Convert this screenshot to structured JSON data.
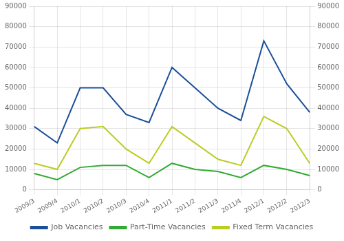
{
  "chart_data": {
    "type": "line",
    "categories": [
      "2009/3",
      "2009/4",
      "2010/1",
      "2010/2",
      "2010/3",
      "2010/4",
      "2011/1",
      "2011/2",
      "2011/3",
      "2011/4",
      "2012/1",
      "2012/2",
      "2012/3"
    ],
    "series": [
      {
        "name": "Job Vacancies",
        "color": "#1b4f9a",
        "values": [
          31000,
          23000,
          50000,
          50000,
          37000,
          33000,
          60000,
          50000,
          40000,
          34000,
          73000,
          52000,
          38000
        ]
      },
      {
        "name": "Part-Time Vacancies",
        "color": "#33aa33",
        "values": [
          8000,
          5000,
          11000,
          12000,
          12000,
          6000,
          13000,
          10000,
          9000,
          6000,
          12000,
          10000,
          7000
        ]
      },
      {
        "name": "Fixed Term Vacancies",
        "color": "#bbcc22",
        "values": [
          13000,
          10000,
          30000,
          31000,
          20000,
          13000,
          31000,
          23000,
          15000,
          12000,
          36000,
          30000,
          13000
        ]
      }
    ],
    "ylim": [
      0,
      90000
    ],
    "yticks": [
      0,
      10000,
      20000,
      30000,
      40000,
      50000,
      60000,
      70000,
      80000,
      90000
    ],
    "y2lim": [
      0,
      90000
    ],
    "y2ticks": [
      0,
      10000,
      20000,
      30000,
      40000,
      50000,
      60000,
      70000,
      80000,
      90000
    ],
    "grid": true,
    "legend": "bottom"
  }
}
